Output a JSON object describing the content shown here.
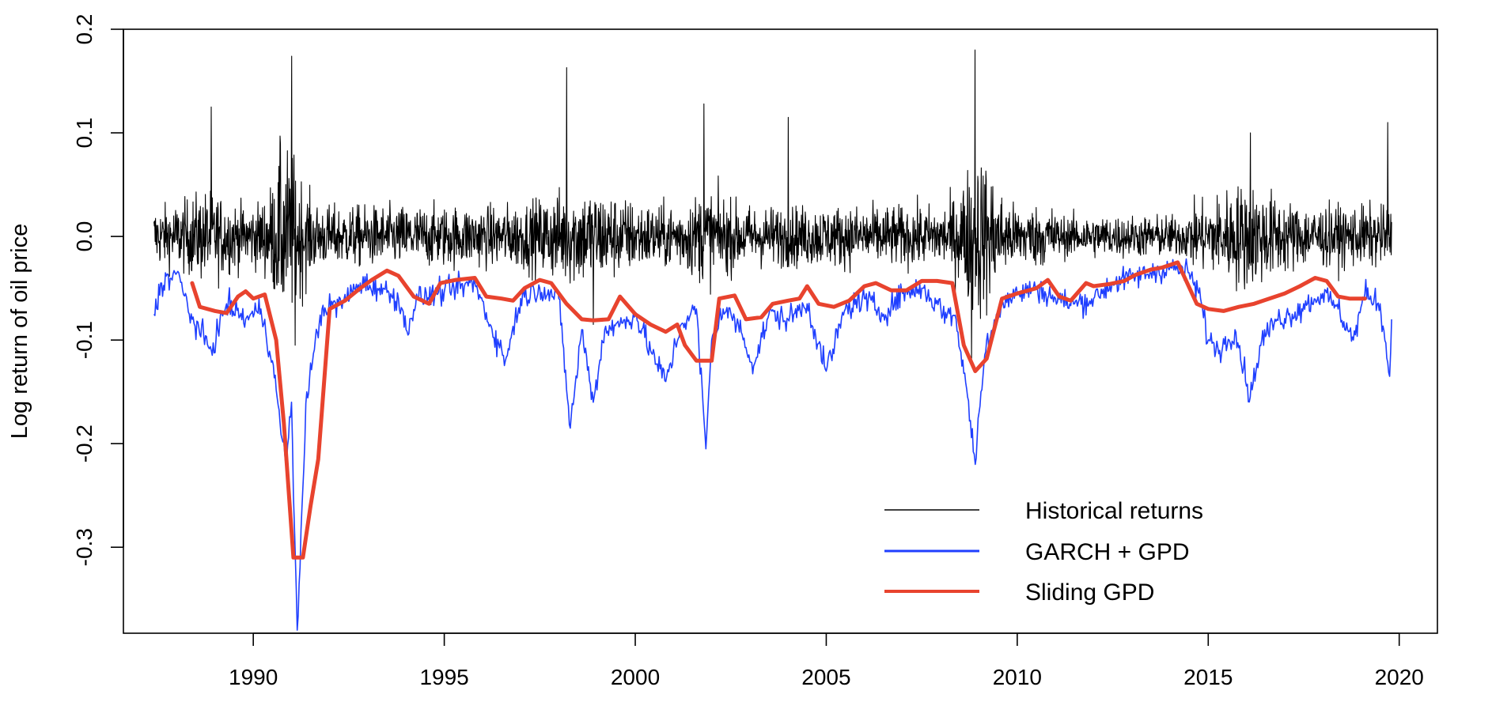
{
  "chart_data": {
    "type": "line",
    "title": "",
    "xlabel": "",
    "ylabel": "Log return of oil price",
    "xlim": [
      1986.6,
      2021.0
    ],
    "ylim": [
      -0.383,
      0.2
    ],
    "x_ticks": [
      1990,
      1995,
      2000,
      2005,
      2010,
      2015,
      2020
    ],
    "x_tick_labels": [
      "1990",
      "1995",
      "2000",
      "2005",
      "2010",
      "2015",
      "2020"
    ],
    "y_ticks": [
      0.2,
      0.1,
      0.0,
      -0.1,
      -0.2,
      -0.3
    ],
    "y_tick_labels": [
      "0.2",
      "0.1",
      "0.0",
      "-0.1",
      "-0.2",
      "-0.3"
    ],
    "grid": false,
    "legend_position": "bottom-right",
    "series": [
      {
        "name": "Historical returns",
        "color": "#000000",
        "style": "dense-thin",
        "x_range": [
          1987.4,
          2019.8
        ],
        "extremes": [
          {
            "x": 1988.9,
            "y": 0.125
          },
          {
            "x": 1990.7,
            "y": 0.097
          },
          {
            "x": 1991.0,
            "y": 0.174
          },
          {
            "x": 1991.1,
            "y": -0.105
          },
          {
            "x": 1998.2,
            "y": 0.163
          },
          {
            "x": 1998.9,
            "y": -0.085
          },
          {
            "x": 2001.8,
            "y": 0.128
          },
          {
            "x": 2004.0,
            "y": 0.115
          },
          {
            "x": 2008.8,
            "y": -0.12
          },
          {
            "x": 2008.9,
            "y": 0.18
          },
          {
            "x": 2016.1,
            "y": 0.1
          },
          {
            "x": 2019.7,
            "y": 0.11
          }
        ]
      },
      {
        "name": "GARCH + GPD",
        "color": "#1f3fff",
        "style": "thin",
        "x": [
          1987.4,
          1987.6,
          1988.0,
          1988.4,
          1988.9,
          1989.3,
          1989.8,
          1990.2,
          1990.5,
          1990.7,
          1990.85,
          1991.0,
          1991.05,
          1991.15,
          1991.4,
          1991.8,
          1992.3,
          1992.8,
          1993.3,
          1993.8,
          1994.0,
          1994.3,
          1994.8,
          1995.3,
          1995.8,
          1996.2,
          1996.6,
          1997.0,
          1997.5,
          1998.0,
          1998.3,
          1998.6,
          1998.9,
          1999.2,
          1999.6,
          2000.0,
          2000.4,
          2000.8,
          2001.2,
          2001.6,
          2001.85,
          2002.0,
          2002.3,
          2002.7,
          2003.1,
          2003.5,
          2004.0,
          2004.5,
          2005.0,
          2005.5,
          2006.0,
          2006.5,
          2007.0,
          2007.5,
          2008.0,
          2008.4,
          2008.7,
          2008.9,
          2009.0,
          2009.2,
          2009.6,
          2010.0,
          2010.5,
          2011.0,
          2011.5,
          2012.0,
          2012.5,
          2013.0,
          2013.5,
          2014.0,
          2014.5,
          2014.8,
          2015.0,
          2015.3,
          2015.7,
          2016.1,
          2016.4,
          2016.8,
          2017.2,
          2017.6,
          2018.0,
          2018.4,
          2018.8,
          2019.1,
          2019.5,
          2019.75,
          2019.8
        ],
        "y": [
          -0.075,
          -0.045,
          -0.035,
          -0.08,
          -0.11,
          -0.065,
          -0.08,
          -0.07,
          -0.12,
          -0.18,
          -0.22,
          -0.16,
          -0.25,
          -0.38,
          -0.15,
          -0.07,
          -0.065,
          -0.045,
          -0.05,
          -0.06,
          -0.09,
          -0.06,
          -0.055,
          -0.05,
          -0.045,
          -0.085,
          -0.12,
          -0.06,
          -0.05,
          -0.06,
          -0.185,
          -0.09,
          -0.16,
          -0.09,
          -0.085,
          -0.075,
          -0.11,
          -0.14,
          -0.085,
          -0.07,
          -0.205,
          -0.1,
          -0.07,
          -0.085,
          -0.125,
          -0.075,
          -0.08,
          -0.065,
          -0.13,
          -0.07,
          -0.06,
          -0.075,
          -0.055,
          -0.05,
          -0.07,
          -0.08,
          -0.155,
          -0.22,
          -0.17,
          -0.1,
          -0.065,
          -0.055,
          -0.05,
          -0.06,
          -0.065,
          -0.06,
          -0.045,
          -0.04,
          -0.035,
          -0.03,
          -0.035,
          -0.06,
          -0.1,
          -0.11,
          -0.09,
          -0.155,
          -0.1,
          -0.08,
          -0.075,
          -0.065,
          -0.055,
          -0.07,
          -0.1,
          -0.055,
          -0.065,
          -0.135,
          -0.08
        ]
      },
      {
        "name": "Sliding GPD",
        "color": "#e8432e",
        "style": "thick",
        "x": [
          1988.4,
          1988.6,
          1989.0,
          1989.3,
          1989.6,
          1989.8,
          1990.0,
          1990.3,
          1990.6,
          1990.8,
          1991.05,
          1991.3,
          1991.5,
          1991.7,
          1992.0,
          1992.4,
          1992.8,
          1993.1,
          1993.5,
          1993.8,
          1994.2,
          1994.6,
          1994.9,
          1995.3,
          1995.8,
          1996.1,
          1996.5,
          1996.8,
          1997.1,
          1997.5,
          1997.8,
          1998.2,
          1998.6,
          1998.9,
          1999.3,
          1999.6,
          2000.0,
          2000.4,
          2000.8,
          2001.1,
          2001.3,
          2001.6,
          2002.0,
          2002.2,
          2002.6,
          2002.9,
          2003.3,
          2003.6,
          2004.0,
          2004.3,
          2004.5,
          2004.8,
          2005.2,
          2005.6,
          2006.0,
          2006.3,
          2006.7,
          2007.1,
          2007.5,
          2007.9,
          2008.3,
          2008.6,
          2008.9,
          2009.2,
          2009.6,
          2010.0,
          2010.5,
          2010.8,
          2011.1,
          2011.4,
          2011.8,
          2012.0,
          2012.4,
          2012.8,
          2013.1,
          2013.5,
          2013.8,
          2014.2,
          2014.7,
          2015.0,
          2015.4,
          2015.8,
          2016.2,
          2016.6,
          2017.0,
          2017.4,
          2017.8,
          2018.1,
          2018.4,
          2018.7,
          2019.1
        ],
        "y": [
          -0.045,
          -0.068,
          -0.072,
          -0.074,
          -0.058,
          -0.053,
          -0.06,
          -0.056,
          -0.1,
          -0.18,
          -0.31,
          -0.31,
          -0.26,
          -0.215,
          -0.07,
          -0.062,
          -0.05,
          -0.042,
          -0.033,
          -0.038,
          -0.058,
          -0.065,
          -0.045,
          -0.042,
          -0.04,
          -0.058,
          -0.06,
          -0.062,
          -0.05,
          -0.042,
          -0.045,
          -0.065,
          -0.08,
          -0.081,
          -0.08,
          -0.058,
          -0.075,
          -0.085,
          -0.092,
          -0.085,
          -0.105,
          -0.12,
          -0.12,
          -0.06,
          -0.057,
          -0.08,
          -0.078,
          -0.065,
          -0.062,
          -0.06,
          -0.048,
          -0.065,
          -0.068,
          -0.062,
          -0.048,
          -0.045,
          -0.052,
          -0.052,
          -0.043,
          -0.043,
          -0.045,
          -0.105,
          -0.13,
          -0.118,
          -0.06,
          -0.055,
          -0.05,
          -0.042,
          -0.058,
          -0.062,
          -0.045,
          -0.048,
          -0.046,
          -0.043,
          -0.037,
          -0.032,
          -0.03,
          -0.025,
          -0.065,
          -0.07,
          -0.072,
          -0.068,
          -0.065,
          -0.06,
          -0.055,
          -0.048,
          -0.04,
          -0.043,
          -0.058,
          -0.06,
          -0.06
        ]
      }
    ]
  }
}
